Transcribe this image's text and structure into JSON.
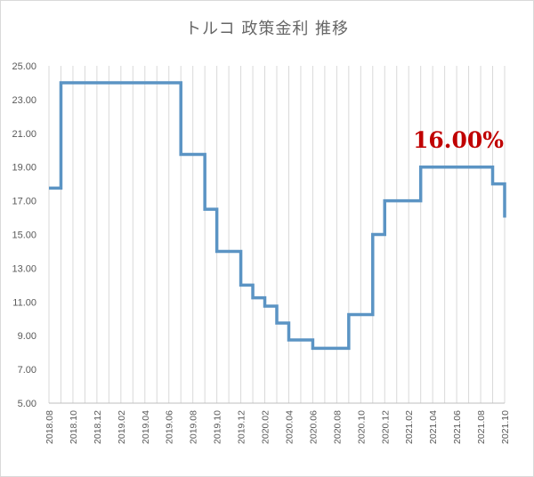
{
  "chart_data": {
    "type": "line",
    "title": "トルコ 政策金利 推移",
    "xlabel": "",
    "ylabel": "",
    "ylim": [
      5,
      25
    ],
    "yticks": [
      "5.00",
      "7.00",
      "9.00",
      "11.00",
      "13.00",
      "15.00",
      "17.00",
      "19.00",
      "21.00",
      "23.00",
      "25.00"
    ],
    "xticks": [
      "2018.08",
      "2018.10",
      "2018.12",
      "2019.02",
      "2019.04",
      "2019.06",
      "2019.08",
      "2019.10",
      "2019.12",
      "2020.02",
      "2020.04",
      "2020.06",
      "2020.08",
      "2020.10",
      "2020.12",
      "2021.02",
      "2021.04",
      "2021.06",
      "2021.08",
      "2021.10"
    ],
    "step": true,
    "grid": "vertical",
    "line_color": "#5b94c4",
    "annotation": {
      "text": "16.00%",
      "color": "#c00000"
    },
    "series": [
      {
        "x": [
          "2018.08",
          "2018.09",
          "2018.10",
          "2018.11",
          "2018.12",
          "2019.01",
          "2019.02",
          "2019.03",
          "2019.04",
          "2019.05",
          "2019.06",
          "2019.07",
          "2019.08",
          "2019.09",
          "2019.10",
          "2019.11",
          "2019.12",
          "2020.01",
          "2020.02",
          "2020.03",
          "2020.04",
          "2020.05",
          "2020.06",
          "2020.07",
          "2020.08",
          "2020.09",
          "2020.10",
          "2020.11",
          "2020.12",
          "2021.01",
          "2021.02",
          "2021.03",
          "2021.04",
          "2021.05",
          "2021.06",
          "2021.07",
          "2021.08",
          "2021.09",
          "2021.10"
        ],
        "values": [
          17.75,
          24.0,
          24.0,
          24.0,
          24.0,
          24.0,
          24.0,
          24.0,
          24.0,
          24.0,
          24.0,
          19.75,
          19.75,
          16.5,
          14.0,
          14.0,
          12.0,
          11.25,
          10.75,
          9.75,
          8.75,
          8.75,
          8.25,
          8.25,
          8.25,
          10.25,
          10.25,
          15.0,
          17.0,
          17.0,
          17.0,
          19.0,
          19.0,
          19.0,
          19.0,
          19.0,
          19.0,
          18.0,
          16.0
        ]
      }
    ]
  }
}
